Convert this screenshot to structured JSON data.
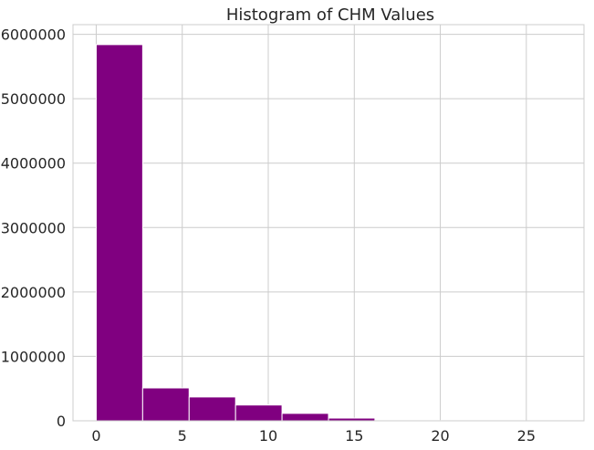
{
  "chart_data": {
    "type": "bar",
    "title": "Histogram of CHM Values",
    "xlabel": "",
    "ylabel": "",
    "bin_edges": [
      0,
      2.7,
      5.4,
      8.1,
      10.8,
      13.5,
      16.2,
      18.9,
      21.6,
      24.3,
      27.0
    ],
    "values": [
      5840000,
      510000,
      370000,
      245000,
      115000,
      42000,
      9000,
      4000,
      1500,
      500
    ],
    "xlim": [
      -1.35,
      28.35
    ],
    "ylim": [
      0,
      6150000
    ],
    "xticks": [
      0,
      5,
      10,
      15,
      20,
      25
    ],
    "yticks": [
      0,
      1000000,
      2000000,
      3000000,
      4000000,
      5000000,
      6000000
    ],
    "xtick_labels": [
      "0",
      "5",
      "10",
      "15",
      "20",
      "25"
    ],
    "ytick_labels": [
      "0",
      "1000000",
      "2000000",
      "3000000",
      "4000000",
      "5000000",
      "6000000"
    ],
    "bar_color": "#800080",
    "grid": true
  }
}
